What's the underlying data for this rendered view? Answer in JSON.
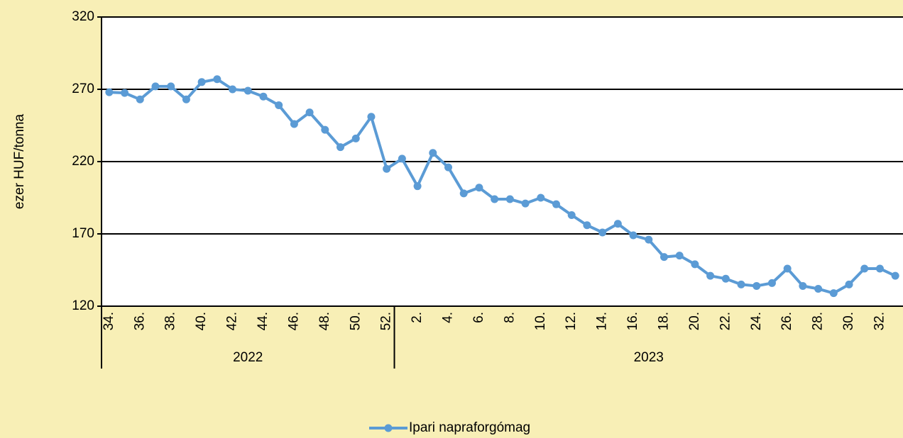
{
  "chart_data": {
    "type": "line",
    "y_label": "ezer HUF/tonna",
    "groups": [
      {
        "name": "2022",
        "categories": [
          "34.",
          null,
          "36.",
          null,
          "38.",
          null,
          "40.",
          null,
          "42.",
          null,
          "44.",
          null,
          "46.",
          null,
          "48.",
          null,
          "50.",
          null,
          "52."
        ]
      },
      {
        "name": "2023",
        "categories": [
          null,
          "2.",
          null,
          "4.",
          null,
          "6.",
          null,
          "8.",
          null,
          "10.",
          null,
          "12.",
          null,
          "14.",
          null,
          "16.",
          null,
          "18.",
          null,
          "20.",
          null,
          "22.",
          null,
          "24.",
          null,
          "26.",
          null,
          "28.",
          null,
          "30.",
          null,
          "32.",
          null
        ]
      }
    ],
    "series": [
      {
        "name": "Ipari napraforgómag",
        "color": "#5b9bd5",
        "values": [
          268,
          267.5,
          263,
          272,
          272,
          263,
          275,
          277,
          270,
          269,
          265,
          259,
          246,
          254,
          242,
          230,
          236,
          251,
          215,
          222,
          203,
          226,
          216,
          198,
          202,
          194,
          194,
          191,
          195,
          190.5,
          183,
          176,
          171,
          177,
          169,
          166,
          154,
          155,
          149,
          141,
          139,
          135,
          134,
          136,
          146,
          134,
          132,
          129,
          135,
          146,
          146,
          141
        ]
      }
    ],
    "ylim": [
      120,
      320
    ],
    "yticks": [
      120,
      170,
      220,
      270,
      320
    ],
    "grid": true,
    "legend": "bottom"
  }
}
